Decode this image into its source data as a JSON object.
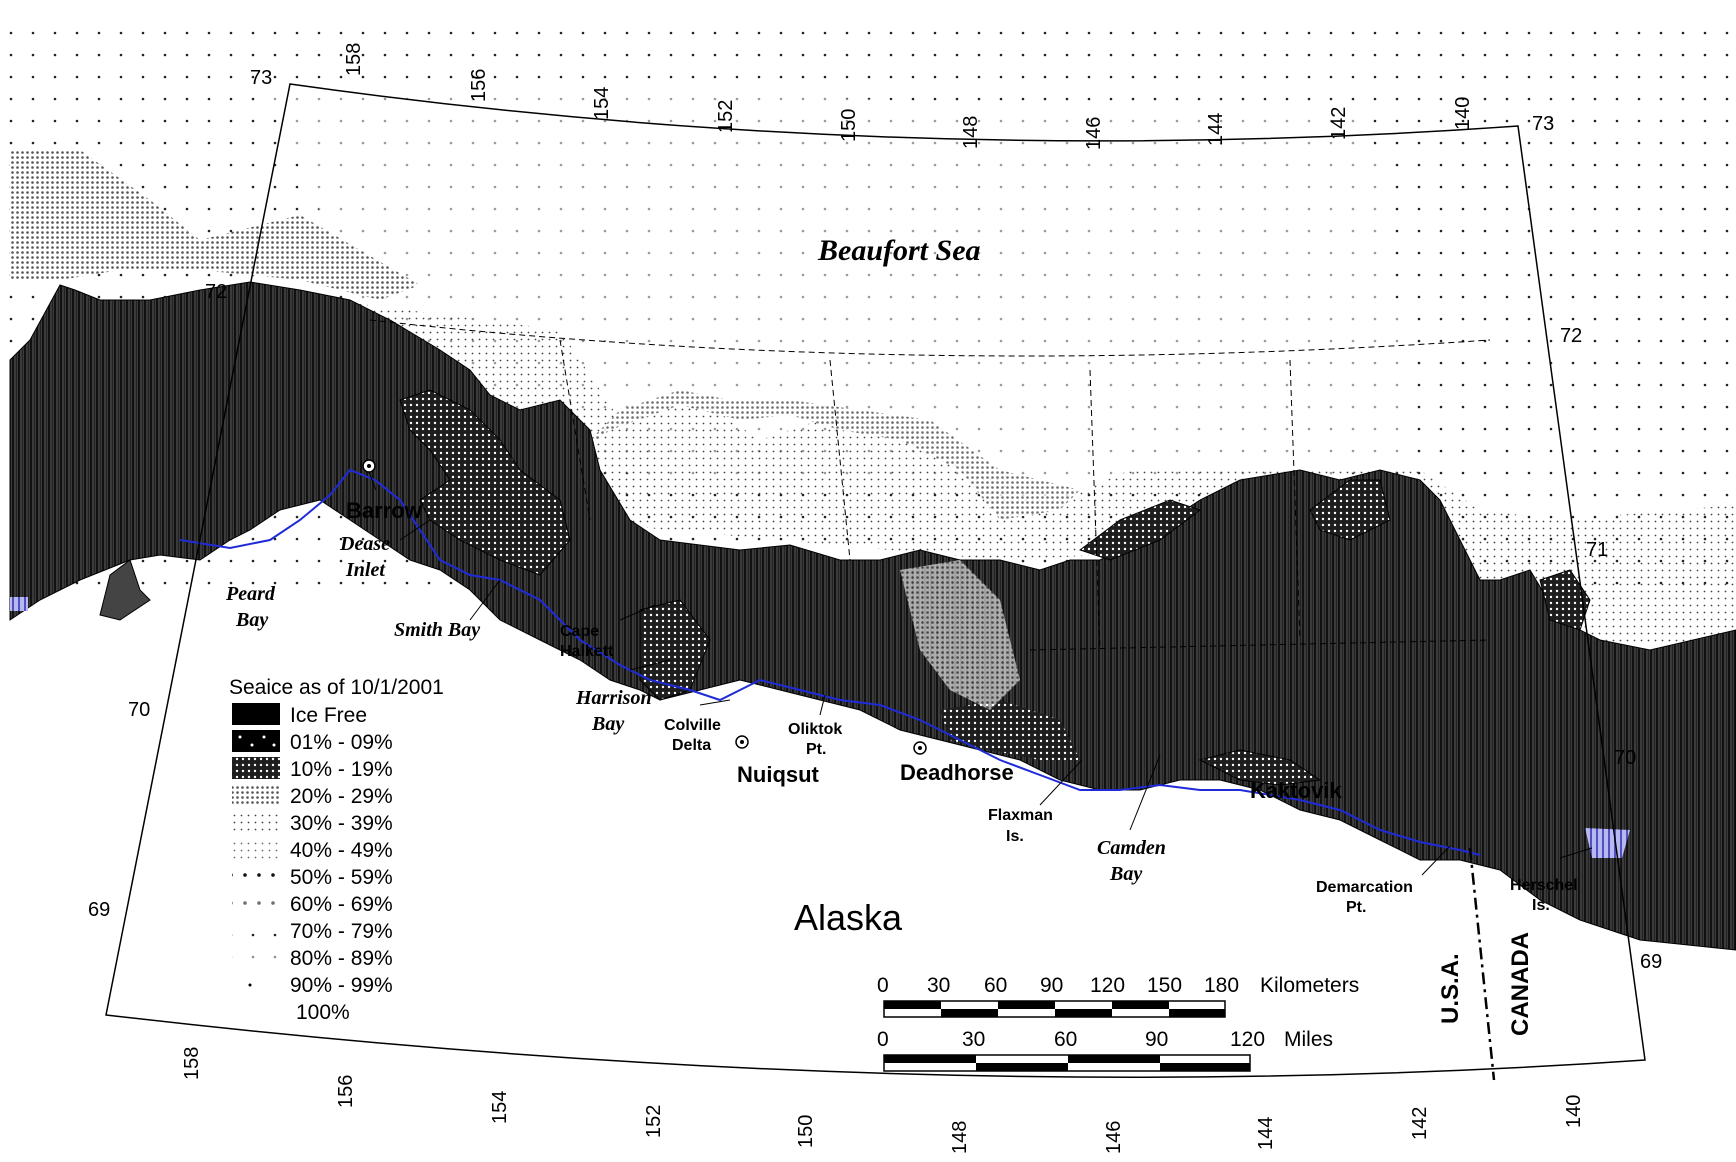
{
  "sea_label": "Beaufort Sea",
  "land_label": "Alaska",
  "towns": [
    {
      "id": "barrow",
      "name": "Barrow"
    },
    {
      "id": "nuiqsut",
      "name": "Nuiqsut"
    },
    {
      "id": "deadhorse",
      "name": "Deadhorse"
    },
    {
      "id": "kaktovik",
      "name": "Kaktovik"
    }
  ],
  "bays": {
    "dease_1": "Dease",
    "dease_2": "Inlet",
    "peard_1": "Peard",
    "peard_2": "Bay",
    "smith": "Smith Bay",
    "harrison_1": "Harrison",
    "harrison_2": "Bay",
    "camden_1": "Camden",
    "camden_2": "Bay"
  },
  "features": {
    "cape_1": "Cape",
    "cape_2": "Halkett",
    "colville_1": "Colville",
    "colville_2": "Delta",
    "oliktok_1": "Oliktok",
    "oliktok_2": "Pt.",
    "flaxman_1": "Flaxman",
    "flaxman_2": "Is.",
    "demarcation_1": "Demarcation",
    "demarcation_2": "Pt.",
    "herschel_1": "Herschel",
    "herschel_2": "Is."
  },
  "border": {
    "usa": "U.S.A.",
    "canada": "CANADA"
  },
  "top_lon_ticks": [
    "158",
    "156",
    "154",
    "152",
    "150",
    "148",
    "146",
    "144",
    "142",
    "140"
  ],
  "bottom_lon_ticks": [
    "158",
    "156",
    "154",
    "152",
    "150",
    "148",
    "146",
    "144",
    "142",
    "140"
  ],
  "left_lat_ticks": [
    "73",
    "72",
    "70",
    "69"
  ],
  "right_lat_ticks": [
    "73",
    "72",
    "71",
    "70",
    "69"
  ],
  "legend": {
    "title": "Seaice as of 10/1/2001",
    "items": [
      "Ice Free",
      " 01% - 09%",
      "10% - 19%",
      "20% - 29%",
      "30% - 39%",
      "40% - 49%",
      "50% - 59%",
      "60% - 69%",
      "70% - 79%",
      "80% - 89%",
      "90% - 99%",
      "100%"
    ]
  },
  "scale_km": {
    "ticks": [
      "0",
      "30",
      "60",
      "90",
      "120",
      "150",
      "180"
    ],
    "unit": "Kilometers"
  },
  "scale_mi": {
    "ticks": [
      "0",
      "30",
      "60",
      "90",
      "120"
    ],
    "unit": "Miles"
  }
}
